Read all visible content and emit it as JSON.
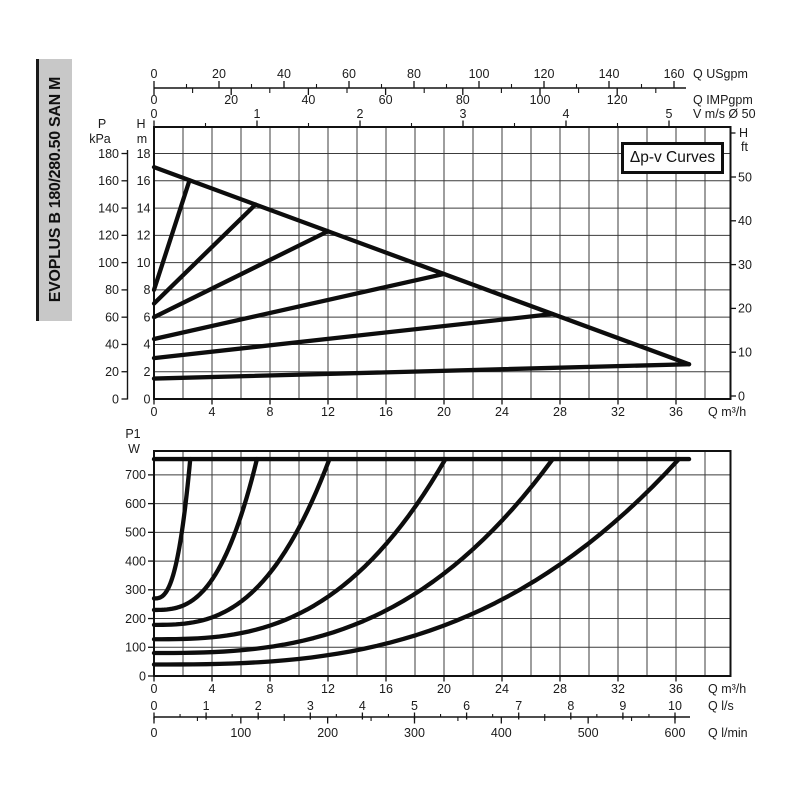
{
  "sidebar": {
    "model": "EVOPLUS B 180/280.50 SAN M"
  },
  "annotation": {
    "box_label": "Δp-v Curves"
  },
  "chart_data": [
    {
      "type": "line",
      "id": "head-capacity-chart",
      "title": "Δp-v Curves",
      "grid": true,
      "x_axes": [
        {
          "name": "flow-usgpm",
          "unit": "Q USgpm",
          "ticks": [
            0,
            20,
            40,
            60,
            80,
            100,
            120,
            140,
            160
          ],
          "minor_step": 10
        },
        {
          "name": "flow-impgpm",
          "unit": "Q IMPgpm",
          "ticks": [
            0,
            20,
            40,
            60,
            80,
            100,
            120
          ],
          "minor_step": 10
        },
        {
          "name": "velocity",
          "unit": "V m/s Ø 50",
          "ticks": [
            0,
            1,
            2,
            3,
            4,
            5
          ],
          "minor_step": 0.5
        },
        {
          "name": "flow-m3h",
          "unit": "Q m³/h",
          "ticks": [
            0,
            4,
            8,
            12,
            16,
            20,
            24,
            28,
            32,
            36
          ],
          "grid_step": 2,
          "range": [
            0,
            39.8
          ]
        }
      ],
      "y_axes": [
        {
          "name": "pressure-kpa",
          "unit": "P kPa",
          "ticks": [
            180,
            160,
            140,
            120,
            100,
            80,
            60,
            40,
            20,
            0
          ]
        },
        {
          "name": "head-m",
          "unit": "H m",
          "ticks": [
            18,
            16,
            14,
            12,
            10,
            8,
            6,
            4,
            2,
            0
          ],
          "grid_step": 2,
          "range": [
            0,
            19.9
          ]
        },
        {
          "name": "head-ft",
          "unit": "H ft",
          "ticks": [
            50,
            40,
            30,
            20,
            10,
            0
          ]
        }
      ],
      "series": [
        {
          "name": "max-speed-curve",
          "points_q_h": [
            [
              0,
              17
            ],
            [
              36.9,
              2.55
            ]
          ]
        },
        {
          "name": "dpv-setpoint-16m",
          "points_q_h": [
            [
              0,
              8
            ],
            [
              2.45,
              16.04
            ]
          ]
        },
        {
          "name": "dpv-setpoint-14m",
          "points_q_h": [
            [
              0,
              7
            ],
            [
              7,
              14.26
            ]
          ]
        },
        {
          "name": "dpv-setpoint-12m",
          "points_q_h": [
            [
              0,
              6
            ],
            [
              12,
              12.3
            ]
          ]
        },
        {
          "name": "dpv-setpoint-9m",
          "points_q_h": [
            [
              0,
              4.4
            ],
            [
              20,
              9.17
            ]
          ]
        },
        {
          "name": "dpv-setpoint-6m",
          "points_q_h": [
            [
              0,
              3
            ],
            [
              27.5,
              6.23
            ]
          ]
        },
        {
          "name": "dpv-setpoint-2.5m",
          "points_q_h": [
            [
              0,
              1.5
            ],
            [
              36.9,
              2.55
            ]
          ]
        }
      ]
    },
    {
      "type": "line",
      "id": "power-input-chart",
      "grid": true,
      "y_axis": {
        "name": "power-w",
        "unit": "P1 W",
        "ticks": [
          700,
          600,
          500,
          400,
          300,
          200,
          100,
          0
        ],
        "grid_step": 100,
        "range": [
          0,
          783
        ]
      },
      "x_axes": [
        {
          "name": "flow-m3h",
          "unit": "Q m³/h",
          "ticks": [
            0,
            4,
            8,
            12,
            16,
            20,
            24,
            28,
            32,
            36
          ],
          "grid_step": 2,
          "range": [
            0,
            39.8
          ]
        },
        {
          "name": "flow-ls",
          "unit": "Q l/s",
          "ticks": [
            0,
            1,
            2,
            3,
            4,
            5,
            6,
            7,
            8,
            9,
            10
          ],
          "minor_step": 0.5
        },
        {
          "name": "flow-lmin",
          "unit": "Q l/min",
          "ticks": [
            0,
            100,
            200,
            300,
            400,
            500,
            600
          ],
          "minor_step": 50
        }
      ],
      "max_power_w": 755,
      "max_power_line_q_end": 36.9,
      "curve_exponent": 2.8,
      "series": [
        {
          "name": "p1-dpv-16m",
          "p0_w": 270,
          "q_end": 2.5
        },
        {
          "name": "p1-dpv-14m",
          "p0_w": 230,
          "q_end": 7.1
        },
        {
          "name": "p1-dpv-12m",
          "p0_w": 178,
          "q_end": 12.1
        },
        {
          "name": "p1-dpv-9m",
          "p0_w": 128,
          "q_end": 20.1
        },
        {
          "name": "p1-dpv-6m",
          "p0_w": 80,
          "q_end": 27.5
        },
        {
          "name": "p1-dpv-2.5m",
          "p0_w": 40,
          "q_end": 36.2
        }
      ]
    }
  ]
}
